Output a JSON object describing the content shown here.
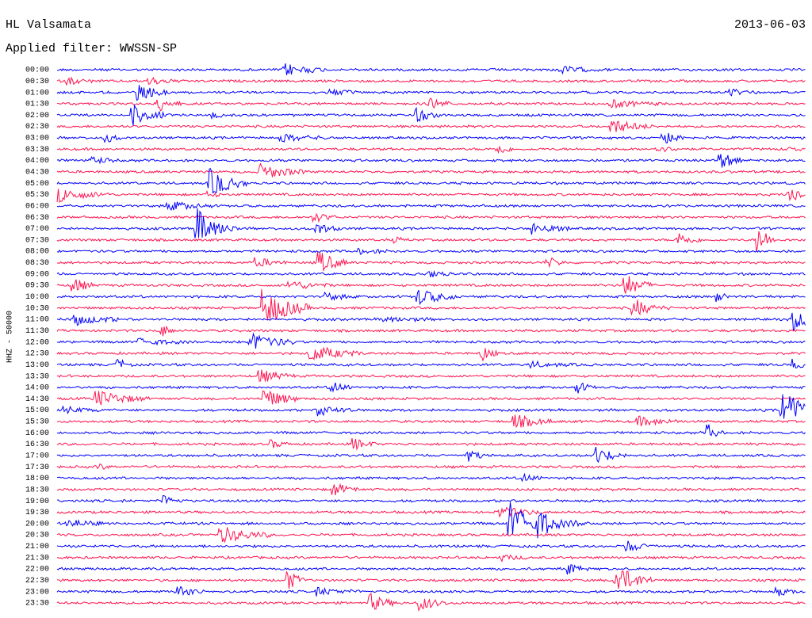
{
  "header": {
    "station": "HL Valsamata",
    "filter": "Applied filter: WWSSN-SP",
    "date": "2013-06-03"
  },
  "channel": "HHZ - 50000",
  "rows": [
    {
      "time": "00:00",
      "color": "#0000ff"
    },
    {
      "time": "00:30",
      "color": "#ff1450"
    },
    {
      "time": "01:00",
      "color": "#0000ff"
    },
    {
      "time": "01:30",
      "color": "#ff1450"
    },
    {
      "time": "02:00",
      "color": "#0000ff"
    },
    {
      "time": "02:30",
      "color": "#ff1450"
    },
    {
      "time": "03:00",
      "color": "#0000ff"
    },
    {
      "time": "03:30",
      "color": "#ff1450"
    },
    {
      "time": "04:00",
      "color": "#0000ff"
    },
    {
      "time": "04:30",
      "color": "#ff1450"
    },
    {
      "time": "05:00",
      "color": "#0000ff"
    },
    {
      "time": "05:30",
      "color": "#ff1450"
    },
    {
      "time": "06:00",
      "color": "#0000ff"
    },
    {
      "time": "06:30",
      "color": "#ff1450"
    },
    {
      "time": "07:00",
      "color": "#0000ff"
    },
    {
      "time": "07:30",
      "color": "#ff1450"
    },
    {
      "time": "08:00",
      "color": "#0000ff"
    },
    {
      "time": "08:30",
      "color": "#ff1450"
    },
    {
      "time": "09:00",
      "color": "#0000ff"
    },
    {
      "time": "09:30",
      "color": "#ff1450"
    },
    {
      "time": "10:00",
      "color": "#0000ff"
    },
    {
      "time": "10:30",
      "color": "#ff1450"
    },
    {
      "time": "11:00",
      "color": "#0000ff"
    },
    {
      "time": "11:30",
      "color": "#ff1450"
    },
    {
      "time": "12:00",
      "color": "#0000ff"
    },
    {
      "time": "12:30",
      "color": "#ff1450"
    },
    {
      "time": "13:00",
      "color": "#0000ff"
    },
    {
      "time": "13:30",
      "color": "#ff1450"
    },
    {
      "time": "14:00",
      "color": "#0000ff"
    },
    {
      "time": "14:30",
      "color": "#ff1450"
    },
    {
      "time": "15:00",
      "color": "#0000ff"
    },
    {
      "time": "15:30",
      "color": "#ff1450"
    },
    {
      "time": "16:00",
      "color": "#0000ff"
    },
    {
      "time": "16:30",
      "color": "#ff1450"
    },
    {
      "time": "17:00",
      "color": "#0000ff"
    },
    {
      "time": "17:30",
      "color": "#ff1450"
    },
    {
      "time": "18:00",
      "color": "#0000ff"
    },
    {
      "time": "18:30",
      "color": "#ff1450"
    },
    {
      "time": "19:00",
      "color": "#0000ff"
    },
    {
      "time": "19:30",
      "color": "#ff1450"
    },
    {
      "time": "20:00",
      "color": "#0000ff"
    },
    {
      "time": "20:30",
      "color": "#ff1450"
    },
    {
      "time": "21:00",
      "color": "#0000ff"
    },
    {
      "time": "21:30",
      "color": "#ff1450"
    },
    {
      "time": "22:00",
      "color": "#0000ff"
    },
    {
      "time": "22:30",
      "color": "#ff1450"
    },
    {
      "time": "23:00",
      "color": "#0000ff"
    },
    {
      "time": "23:30",
      "color": "#ff1450"
    }
  ]
}
